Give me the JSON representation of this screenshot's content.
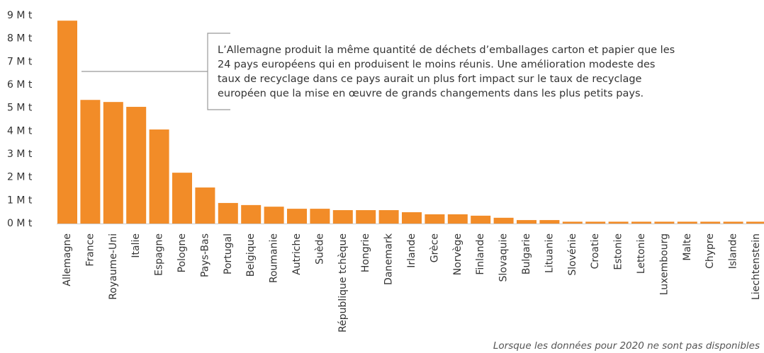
{
  "chart_data": {
    "type": "bar",
    "categories": [
      "Allemagne",
      "France",
      "Royaume-Uni",
      "Italie",
      "Espagne",
      "Pologne",
      "Pays-Bas",
      "Portugal",
      "Belgique",
      "Roumanie",
      "Autriche",
      "Suède",
      "République tchèque",
      "Hongrie",
      "Danemark",
      "Irlande",
      "Grèce",
      "Norvège",
      "Finlande",
      "Slovaquie",
      "Bulgarie",
      "Lituanie",
      "Slovénie",
      "Croatie",
      "Estonie",
      "Lettonie",
      "Luxembourg",
      "Malte",
      "Chypre",
      "Islande",
      "Liechtenstein"
    ],
    "values": [
      8.78,
      5.35,
      5.26,
      5.05,
      4.07,
      2.2,
      1.56,
      0.89,
      0.8,
      0.73,
      0.64,
      0.64,
      0.58,
      0.58,
      0.58,
      0.49,
      0.4,
      0.4,
      0.34,
      0.25,
      0.15,
      0.15,
      0.08,
      0.08,
      0.08,
      0.08,
      0.08,
      0.08,
      0.08,
      0.08,
      0.08
    ],
    "color": "#f28c28",
    "ylim": [
      0,
      9
    ],
    "yticks": [
      {
        "value": 0,
        "label": "0 M t"
      },
      {
        "value": 1,
        "label": "1 M t"
      },
      {
        "value": 2,
        "label": "2 M t"
      },
      {
        "value": 3,
        "label": "3 M t"
      },
      {
        "value": 4,
        "label": "4 M t"
      },
      {
        "value": 5,
        "label": "5 M t"
      },
      {
        "value": 6,
        "label": "6 M t"
      },
      {
        "value": 7,
        "label": "7 M t"
      },
      {
        "value": 8,
        "label": "8 M t"
      },
      {
        "value": 9,
        "label": "9 M t"
      }
    ],
    "annotation": [
      "L’Allemagne produit la même quantité de déchets d’emballages carton et papier que les",
      "24 pays européens qui en produisent le moins réunis. Une amélioration modeste des",
      "taux de recyclage dans ce pays aurait un plus fort impact sur le taux de recyclage",
      "européen que la mise en œuvre de grands changements dans les plus petits pays."
    ],
    "footnote": "Lorsque les données pour 2020 ne sont pas disponibles"
  }
}
